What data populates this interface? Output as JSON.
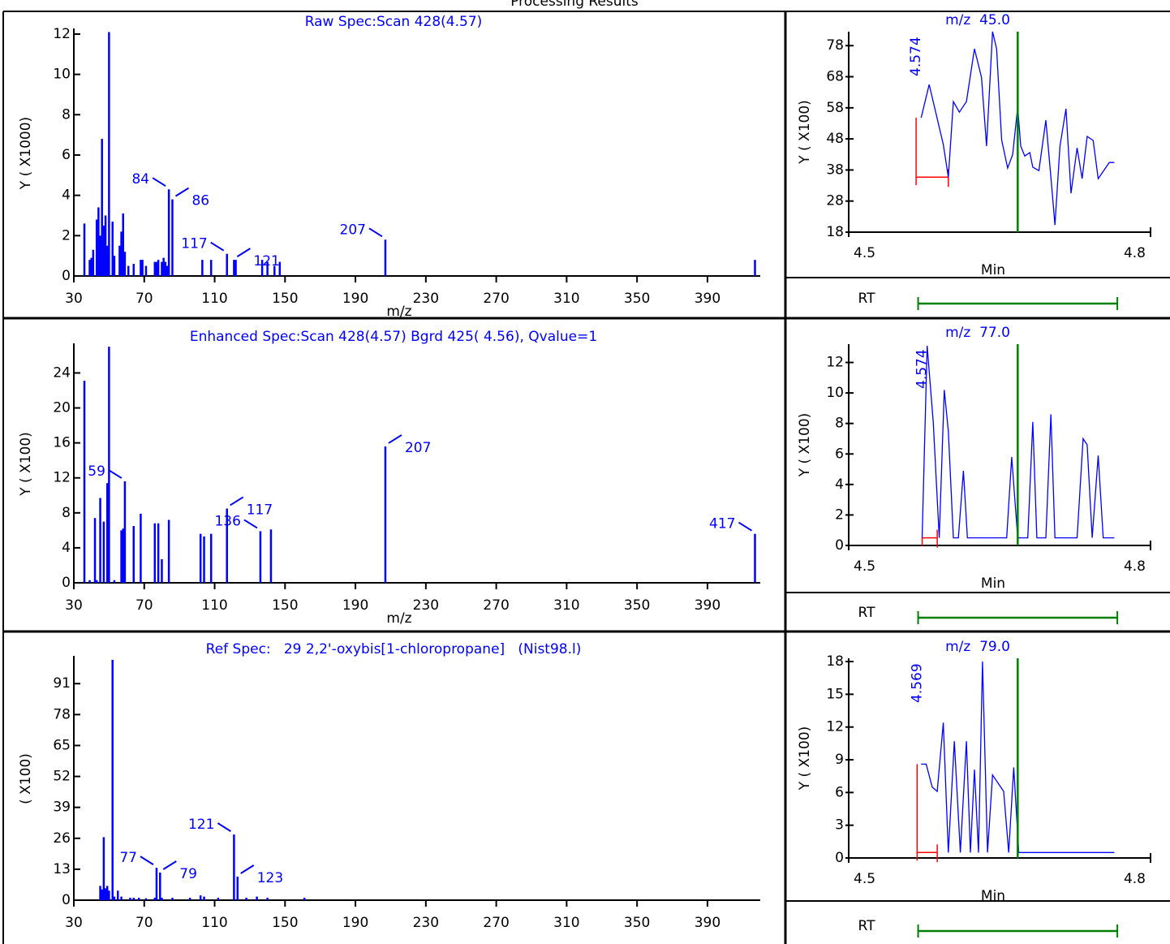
{
  "page_title": "Processing Results",
  "chart_data": [
    {
      "type": "spectrum",
      "title": "Raw Spec:Scan 428(4.57)",
      "y_label": "Y ( X1000)",
      "x_label": "m/z",
      "color": "#0000ff",
      "x": [
        36,
        39,
        40,
        41,
        43,
        44,
        45,
        46,
        47,
        48,
        49,
        50,
        52,
        53,
        56,
        57,
        58,
        59,
        61,
        64,
        68,
        69,
        71,
        76,
        77,
        78,
        80,
        81,
        82,
        83,
        103,
        108,
        122,
        137,
        140,
        144,
        147,
        417
      ],
      "values": [
        2.6,
        0.8,
        0.9,
        1.3,
        2.8,
        3.4,
        2.0,
        6.8,
        2.5,
        3.0,
        1.5,
        12.1,
        2.7,
        1.0,
        1.5,
        2.2,
        3.1,
        1.2,
        0.5,
        0.6,
        0.8,
        0.8,
        0.5,
        0.7,
        0.7,
        0.8,
        0.7,
        0.9,
        0.7,
        0.5,
        0.8,
        0.8,
        0.8,
        0.8,
        0.7,
        0.5,
        0.7,
        0.8
      ],
      "labeled_x": [
        84,
        86,
        117,
        121,
        207
      ],
      "labeled_values": [
        4.3,
        3.8,
        1.1,
        0.8,
        1.8
      ],
      "xlim": [
        30,
        420
      ],
      "xticks": [
        30,
        70,
        110,
        150,
        190,
        230,
        270,
        310,
        350,
        390
      ],
      "ylim": [
        0,
        12.2
      ],
      "yticks": [
        0,
        2,
        4,
        6,
        8,
        10,
        12
      ]
    },
    {
      "type": "spectrum",
      "title": "Enhanced Spec:Scan 428(4.57) Bgrd 425( 4.56), Qvalue=1",
      "y_label": "Y ( X100)",
      "x_label": "m/z",
      "color": "#0000ff",
      "x": [
        36,
        39,
        42,
        43,
        45,
        47,
        49,
        50,
        53,
        57,
        58,
        64,
        68,
        76,
        78,
        80,
        84,
        102,
        104,
        108,
        142
      ],
      "values": [
        23.1,
        0.3,
        7.4,
        0.3,
        9.7,
        7.0,
        11.4,
        27.0,
        0.3,
        6.0,
        6.2,
        6.5,
        7.9,
        6.8,
        6.8,
        2.7,
        7.2,
        5.6,
        5.3,
        5.6,
        6.1
      ],
      "labeled_x": [
        59,
        117,
        136,
        207,
        417
      ],
      "labeled_values": [
        11.6,
        8.5,
        5.9,
        15.6,
        5.6
      ],
      "xlim": [
        30,
        420
      ],
      "xticks": [
        30,
        70,
        110,
        150,
        190,
        230,
        270,
        310,
        350,
        390
      ],
      "ylim": [
        0,
        27.2
      ],
      "yticks": [
        0,
        4,
        8,
        12,
        16,
        20,
        24
      ]
    },
    {
      "type": "spectrum",
      "title": "Ref Spec:   29 2,2'-oxybis[1-chloropropane]   (Nist98.l)",
      "y_label": "( X100)",
      "color": "#0000ff",
      "x": [
        45,
        46,
        47,
        48,
        49,
        50,
        52,
        53,
        55,
        57,
        62,
        64,
        67,
        71,
        76,
        80,
        86,
        96,
        102,
        104,
        112,
        128,
        134,
        140,
        161
      ],
      "values": [
        6,
        4.5,
        26.5,
        5,
        6,
        4,
        101,
        1.5,
        4,
        1.5,
        1,
        1,
        1,
        0.8,
        1,
        1,
        1,
        1,
        2,
        1.5,
        1,
        1,
        1.5,
        1,
        1
      ],
      "labeled_x": [
        77,
        79,
        121,
        123
      ],
      "labeled_values": [
        13.6,
        11.6,
        27.6,
        9.9
      ],
      "xlim": [
        30,
        420
      ],
      "xticks": [
        30,
        70,
        110,
        150,
        190,
        230,
        270,
        310,
        350,
        390
      ],
      "ylim": [
        0,
        102
      ],
      "yticks": [
        0,
        13,
        26,
        39,
        52,
        65,
        78,
        91
      ]
    },
    {
      "type": "line",
      "title": "m/z  45.0",
      "y_label": "Y ( X100)",
      "x_label": "Min",
      "annotation": "4.574",
      "color": "#0000ff",
      "x": [
        4.572,
        4.58,
        4.594,
        4.599,
        4.604,
        4.61,
        4.617,
        4.625,
        4.632,
        4.637,
        4.643,
        4.647,
        4.652,
        4.658,
        4.663,
        4.668,
        4.671,
        4.675,
        4.68,
        4.683,
        4.689,
        4.696,
        4.701,
        4.705,
        4.71,
        4.716,
        4.721,
        4.727,
        4.732,
        4.737,
        4.743,
        4.748,
        4.759,
        4.764
      ],
      "values": [
        54.8,
        65.5,
        46.2,
        35.7,
        60.0,
        56.6,
        60.0,
        77.0,
        67.8,
        45.7,
        82.5,
        77.0,
        47.7,
        38.6,
        43.0,
        58.2,
        45.7,
        42.5,
        43.6,
        38.9,
        37.8,
        54.0,
        35.7,
        20.3,
        45.7,
        57.7,
        30.5,
        45.1,
        35.2,
        48.8,
        47.5,
        35.2,
        40.4,
        40.4
      ],
      "xlim": [
        4.5,
        4.8
      ],
      "xticks": [
        4.5,
        4.8
      ],
      "ylim": [
        18,
        82.5
      ],
      "yticks": [
        18,
        28,
        38,
        48,
        58,
        68,
        78
      ],
      "marker_x": 4.668,
      "marker_color": "#008000",
      "integration": {
        "start": 4.567,
        "end": 4.599,
        "baseline": 35.7,
        "color": "#ff0000"
      },
      "rt_label": "RT",
      "rt_window": [
        4.569,
        4.767
      ]
    },
    {
      "type": "line",
      "title": "m/z  77.0",
      "y_label": "Y ( X100)",
      "x_label": "Min",
      "annotation": "4.574",
      "color": "#0000ff",
      "x": [
        4.573,
        4.578,
        4.584,
        4.59,
        4.595,
        4.599,
        4.604,
        4.609,
        4.614,
        4.618,
        4.657,
        4.662,
        4.668,
        4.678,
        4.683,
        4.687,
        4.696,
        4.701,
        4.705,
        4.727,
        4.733,
        4.737,
        4.742,
        4.748,
        4.753,
        4.764
      ],
      "values": [
        0.5,
        13.1,
        8.1,
        0.5,
        10.2,
        7.5,
        0.5,
        0.5,
        4.9,
        0.5,
        0.5,
        5.8,
        0.5,
        0.5,
        8.1,
        0.5,
        0.5,
        8.6,
        0.5,
        0.5,
        7.0,
        6.6,
        0.5,
        5.9,
        0.5,
        0.5
      ],
      "xlim": [
        4.5,
        4.8
      ],
      "xticks": [
        4.5,
        4.8
      ],
      "ylim": [
        0,
        13.2
      ],
      "yticks": [
        0,
        2,
        4,
        6,
        8,
        10,
        12
      ],
      "marker_x": 4.668,
      "marker_color": "#008000",
      "integration": {
        "start": 4.573,
        "end": 4.588,
        "baseline": 0.5,
        "color": "#ff0000"
      },
      "rt_label": "RT",
      "rt_window": [
        4.569,
        4.767
      ]
    },
    {
      "type": "line",
      "title": "m/z  79.0",
      "y_label": "Y ( X100)",
      "x_label": "Min",
      "annotation": "4.569",
      "color": "#0000ff",
      "x": [
        4.572,
        4.577,
        4.583,
        4.588,
        4.594,
        4.599,
        4.605,
        4.611,
        4.617,
        4.621,
        4.625,
        4.629,
        4.633,
        4.638,
        4.643,
        4.654,
        4.659,
        4.664,
        4.669,
        4.764
      ],
      "values": [
        8.6,
        8.6,
        6.5,
        6.1,
        12.4,
        0.5,
        10.7,
        0.5,
        10.7,
        0.5,
        8.1,
        0.5,
        18.0,
        0.5,
        7.6,
        6.1,
        0.5,
        8.3,
        0.5,
        0.5
      ],
      "xlim": [
        4.5,
        4.8
      ],
      "xticks": [
        4.5,
        4.8
      ],
      "ylim": [
        0,
        18.3
      ],
      "yticks": [
        0,
        3,
        6,
        9,
        12,
        15,
        18
      ],
      "marker_x": 4.668,
      "marker_color": "#008000",
      "integration": {
        "start": 4.568,
        "end": 4.588,
        "baseline": 0.5,
        "color": "#ff0000"
      },
      "rt_label": "RT",
      "rt_window": [
        4.569,
        4.767
      ]
    }
  ]
}
